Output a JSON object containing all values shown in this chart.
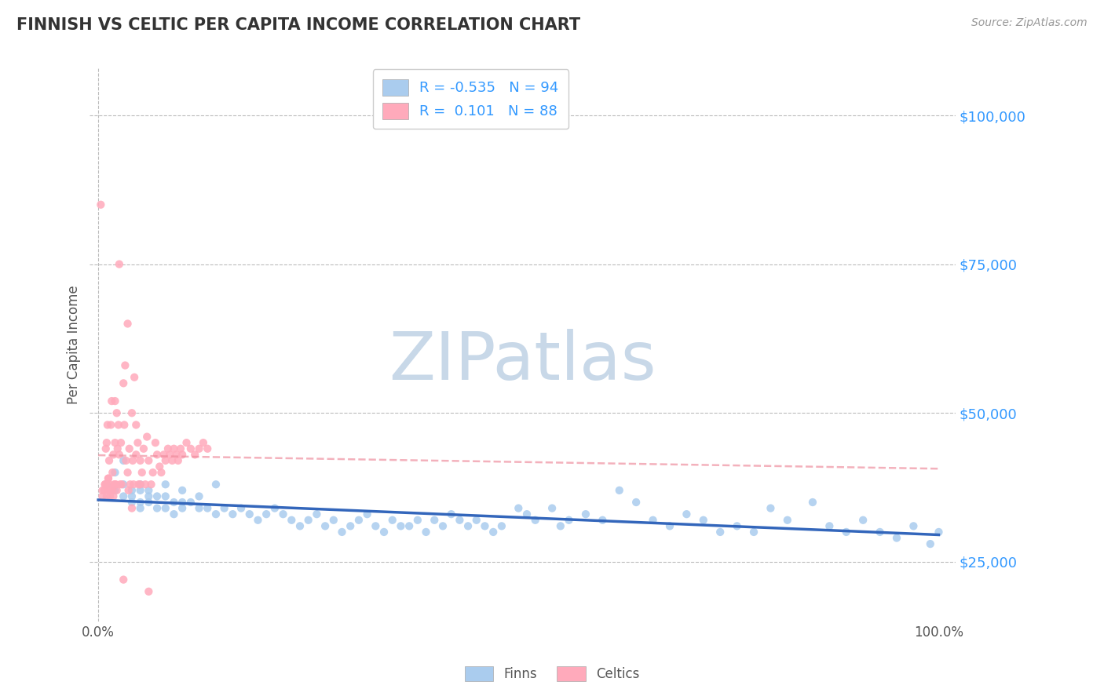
{
  "title": "FINNISH VS CELTIC PER CAPITA INCOME CORRELATION CHART",
  "source": "Source: ZipAtlas.com",
  "ylabel": "Per Capita Income",
  "ytick_labels": [
    "$25,000",
    "$50,000",
    "$75,000",
    "$100,000"
  ],
  "ytick_values": [
    25000,
    50000,
    75000,
    100000
  ],
  "ylim": [
    15000,
    108000
  ],
  "xlim": [
    -0.01,
    1.02
  ],
  "xtick_labels": [
    "0.0%",
    "100.0%"
  ],
  "xtick_values": [
    0.0,
    1.0
  ],
  "finns_color": "#aaccee",
  "celtics_color": "#ffaabb",
  "finns_line_color": "#3366bb",
  "celtics_line_color": "#ee8899",
  "finns_R": -0.535,
  "finns_N": 94,
  "celtics_R": 0.101,
  "celtics_N": 88,
  "background_color": "#ffffff",
  "grid_color": "#bbbbbb",
  "title_color": "#333333",
  "axis_label_color": "#3399ff",
  "watermark": "ZIPatlas",
  "watermark_color": "#c8d8e8",
  "legend_label_1": "Finns",
  "legend_label_2": "Celtics",
  "finns_x": [
    0.01,
    0.02,
    0.02,
    0.03,
    0.03,
    0.03,
    0.04,
    0.04,
    0.04,
    0.05,
    0.05,
    0.05,
    0.05,
    0.06,
    0.06,
    0.06,
    0.07,
    0.07,
    0.08,
    0.08,
    0.09,
    0.09,
    0.1,
    0.1,
    0.11,
    0.12,
    0.13,
    0.14,
    0.15,
    0.16,
    0.17,
    0.18,
    0.19,
    0.2,
    0.21,
    0.22,
    0.23,
    0.24,
    0.25,
    0.26,
    0.27,
    0.28,
    0.29,
    0.3,
    0.31,
    0.32,
    0.33,
    0.34,
    0.35,
    0.36,
    0.37,
    0.38,
    0.39,
    0.4,
    0.41,
    0.42,
    0.43,
    0.44,
    0.45,
    0.46,
    0.47,
    0.48,
    0.5,
    0.51,
    0.52,
    0.54,
    0.55,
    0.56,
    0.58,
    0.6,
    0.62,
    0.64,
    0.66,
    0.68,
    0.7,
    0.72,
    0.74,
    0.76,
    0.78,
    0.8,
    0.82,
    0.85,
    0.87,
    0.89,
    0.91,
    0.93,
    0.95,
    0.97,
    0.99,
    1.0,
    0.08,
    0.1,
    0.12,
    0.14
  ],
  "finns_y": [
    38000,
    37000,
    40000,
    38000,
    36000,
    42000,
    37000,
    36000,
    35000,
    38000,
    37000,
    35000,
    34000,
    37000,
    36000,
    35000,
    36000,
    34000,
    36000,
    34000,
    35000,
    33000,
    35000,
    34000,
    35000,
    34000,
    34000,
    33000,
    34000,
    33000,
    34000,
    33000,
    32000,
    33000,
    34000,
    33000,
    32000,
    31000,
    32000,
    33000,
    31000,
    32000,
    30000,
    31000,
    32000,
    33000,
    31000,
    30000,
    32000,
    31000,
    31000,
    32000,
    30000,
    32000,
    31000,
    33000,
    32000,
    31000,
    32000,
    31000,
    30000,
    31000,
    34000,
    33000,
    32000,
    34000,
    31000,
    32000,
    33000,
    32000,
    37000,
    35000,
    32000,
    31000,
    33000,
    32000,
    30000,
    31000,
    30000,
    34000,
    32000,
    35000,
    31000,
    30000,
    32000,
    30000,
    29000,
    31000,
    28000,
    30000,
    38000,
    37000,
    36000,
    38000
  ],
  "celtics_x": [
    0.005,
    0.007,
    0.008,
    0.009,
    0.01,
    0.01,
    0.011,
    0.012,
    0.012,
    0.013,
    0.013,
    0.014,
    0.015,
    0.015,
    0.016,
    0.017,
    0.017,
    0.018,
    0.019,
    0.02,
    0.02,
    0.021,
    0.022,
    0.022,
    0.023,
    0.024,
    0.025,
    0.026,
    0.027,
    0.028,
    0.03,
    0.031,
    0.032,
    0.033,
    0.035,
    0.036,
    0.037,
    0.038,
    0.04,
    0.041,
    0.042,
    0.043,
    0.045,
    0.047,
    0.048,
    0.05,
    0.052,
    0.054,
    0.056,
    0.058,
    0.06,
    0.063,
    0.065,
    0.068,
    0.07,
    0.073,
    0.075,
    0.078,
    0.08,
    0.083,
    0.085,
    0.088,
    0.09,
    0.093,
    0.095,
    0.098,
    0.1,
    0.105,
    0.11,
    0.115,
    0.12,
    0.125,
    0.13,
    0.005,
    0.008,
    0.01,
    0.012,
    0.015,
    0.018,
    0.02,
    0.025,
    0.03,
    0.035,
    0.04,
    0.045,
    0.05,
    0.003,
    0.06
  ],
  "celtics_y": [
    36000,
    37000,
    38000,
    44000,
    45000,
    38000,
    48000,
    37000,
    39000,
    42000,
    38000,
    36000,
    48000,
    37000,
    52000,
    40000,
    37000,
    43000,
    38000,
    45000,
    52000,
    38000,
    50000,
    37000,
    44000,
    48000,
    43000,
    38000,
    45000,
    38000,
    55000,
    48000,
    58000,
    42000,
    40000,
    37000,
    44000,
    38000,
    50000,
    42000,
    38000,
    56000,
    43000,
    45000,
    38000,
    42000,
    40000,
    44000,
    38000,
    46000,
    42000,
    38000,
    40000,
    45000,
    43000,
    41000,
    40000,
    43000,
    42000,
    44000,
    43000,
    42000,
    44000,
    43000,
    42000,
    44000,
    43000,
    45000,
    44000,
    43000,
    44000,
    45000,
    44000,
    37000,
    38000,
    36000,
    39000,
    37000,
    36000,
    38000,
    75000,
    22000,
    65000,
    34000,
    48000,
    38000,
    85000,
    20000
  ]
}
